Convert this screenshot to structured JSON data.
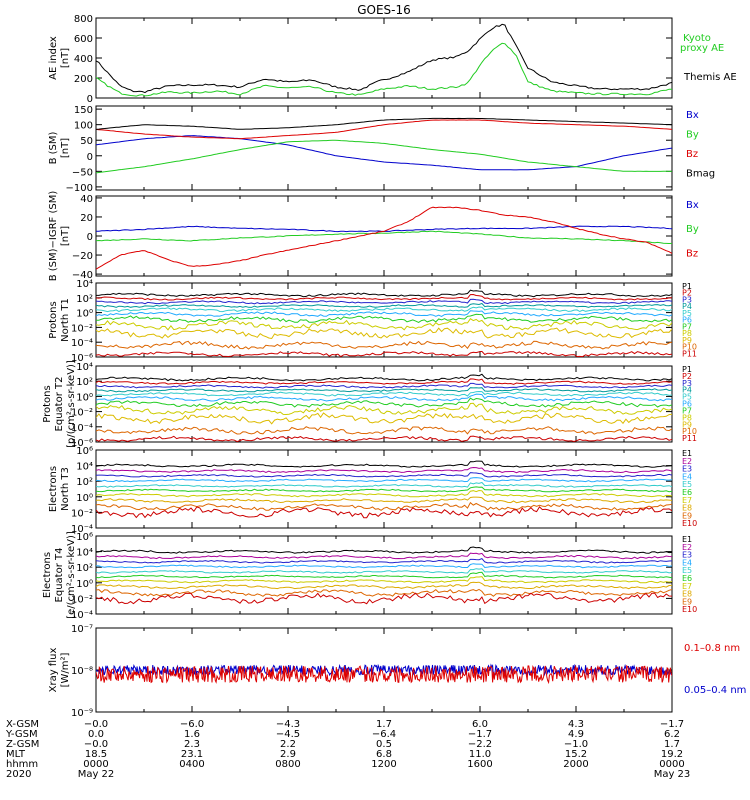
{
  "title": "GOES-16",
  "chart_data": [
    {
      "type": "line",
      "panel": "ae",
      "ylabel": [
        "AE index",
        "[nT]"
      ],
      "ylim": [
        0,
        800
      ],
      "ticks": [
        {
          "v": 0,
          "t": "0"
        },
        {
          "v": 200,
          "t": "200"
        },
        {
          "v": 400,
          "t": "400"
        },
        {
          "v": 600,
          "t": "600"
        },
        {
          "v": 800,
          "t": "800"
        }
      ],
      "legend": [
        {
          "text": "Kyoto",
          "color": "#22cc22"
        },
        {
          "text": "proxy AE",
          "color": "#22cc22"
        },
        {
          "text": "Themis AE",
          "color": "#000000"
        }
      ],
      "series": [
        {
          "name": "Themis AE",
          "color": "#000000",
          "x": [
            0,
            0.5,
            1,
            1.5,
            2,
            3,
            4,
            5,
            6,
            7,
            8,
            9,
            10,
            11,
            11.8,
            12,
            13,
            14,
            15,
            15.5,
            16,
            16.5,
            17,
            17.5,
            18,
            19,
            20,
            21,
            22,
            23,
            24
          ],
          "y": [
            380,
            250,
            120,
            70,
            60,
            120,
            130,
            130,
            110,
            190,
            160,
            180,
            110,
            80,
            170,
            180,
            260,
            380,
            410,
            470,
            590,
            700,
            740,
            520,
            300,
            160,
            120,
            90,
            90,
            90,
            150
          ]
        },
        {
          "name": "Kyoto proxy AE",
          "color": "#22cc22",
          "x": [
            0,
            0.5,
            1,
            1.5,
            2,
            3,
            4,
            5,
            6,
            7,
            8,
            9,
            10,
            11,
            11.8,
            12,
            13,
            14,
            15,
            15.5,
            16,
            16.5,
            17,
            17.5,
            18,
            19,
            20,
            21,
            22,
            23,
            24
          ],
          "y": [
            200,
            120,
            50,
            30,
            25,
            60,
            50,
            70,
            40,
            120,
            100,
            110,
            50,
            30,
            80,
            90,
            120,
            90,
            110,
            150,
            330,
            470,
            560,
            430,
            160,
            70,
            50,
            40,
            40,
            40,
            90
          ]
        }
      ]
    },
    {
      "type": "line",
      "panel": "b",
      "ylabel": [
        "B (SM)",
        "[nT]"
      ],
      "ylim": [
        -110,
        160
      ],
      "ticks": [
        {
          "v": -100,
          "t": "−100"
        },
        {
          "v": -50,
          "t": "−50"
        },
        {
          "v": 0,
          "t": "0"
        },
        {
          "v": 50,
          "t": "50"
        },
        {
          "v": 100,
          "t": "100"
        },
        {
          "v": 150,
          "t": "150"
        }
      ],
      "legend": [
        {
          "text": "Bx",
          "color": "#0000cc"
        },
        {
          "text": "By",
          "color": "#22cc22"
        },
        {
          "text": "Bz",
          "color": "#dd0000"
        },
        {
          "text": "Bmag",
          "color": "#000000"
        }
      ],
      "series": [
        {
          "name": "Bx",
          "color": "#0000cc",
          "x": [
            0,
            2,
            4,
            6,
            8,
            10,
            12,
            14,
            16,
            18,
            20,
            22,
            24
          ],
          "y": [
            35,
            55,
            65,
            55,
            35,
            0,
            -20,
            -30,
            -45,
            -45,
            -35,
            0,
            25
          ]
        },
        {
          "name": "By",
          "color": "#22cc22",
          "x": [
            0,
            2,
            4,
            6,
            8,
            10,
            12,
            14,
            16,
            18,
            20,
            22,
            24
          ],
          "y": [
            -55,
            -35,
            -10,
            20,
            45,
            50,
            40,
            20,
            5,
            -20,
            -35,
            -50,
            -50
          ]
        },
        {
          "name": "Bz",
          "color": "#dd0000",
          "x": [
            0,
            2,
            4,
            6,
            8,
            10,
            12,
            14,
            16,
            18,
            20,
            22,
            24
          ],
          "y": [
            85,
            70,
            60,
            55,
            65,
            75,
            100,
            115,
            115,
            105,
            100,
            95,
            85
          ]
        },
        {
          "name": "Bmag",
          "color": "#000000",
          "x": [
            0,
            2,
            4,
            6,
            8,
            10,
            12,
            14,
            16,
            18,
            20,
            22,
            24
          ],
          "y": [
            85,
            100,
            95,
            85,
            90,
            100,
            115,
            120,
            120,
            115,
            110,
            105,
            100
          ]
        }
      ]
    },
    {
      "type": "line",
      "panel": "db",
      "ylabel": [
        "B (SM)−IGRF (SM)",
        "[nT]"
      ],
      "ylim": [
        -42,
        42
      ],
      "ticks": [
        {
          "v": -40,
          "t": "−40"
        },
        {
          "v": -20,
          "t": "−20"
        },
        {
          "v": 0,
          "t": "0"
        },
        {
          "v": 20,
          "t": "20"
        },
        {
          "v": 40,
          "t": "40"
        }
      ],
      "legend": [
        {
          "text": "Bx",
          "color": "#0000cc"
        },
        {
          "text": "By",
          "color": "#22cc22"
        },
        {
          "text": "Bz",
          "color": "#dd0000"
        }
      ],
      "series": [
        {
          "name": "Bx",
          "color": "#0000cc",
          "x": [
            0,
            2,
            4,
            6,
            8,
            10,
            12,
            14,
            16,
            18,
            20,
            22,
            24
          ],
          "y": [
            5,
            7,
            10,
            8,
            7,
            5,
            5,
            7,
            8,
            8,
            10,
            10,
            8
          ]
        },
        {
          "name": "By",
          "color": "#22cc22",
          "x": [
            0,
            2,
            4,
            6,
            8,
            10,
            12,
            14,
            16,
            18,
            20,
            22,
            24
          ],
          "y": [
            -5,
            -3,
            -5,
            -2,
            0,
            2,
            3,
            5,
            2,
            -2,
            -3,
            -5,
            -8
          ]
        },
        {
          "name": "Bz",
          "color": "#dd0000",
          "x": [
            0,
            1,
            2,
            3,
            4,
            5,
            6,
            7,
            8,
            9,
            10,
            11,
            12,
            13,
            14,
            15,
            16,
            17,
            18,
            19,
            20,
            21,
            22,
            23,
            24
          ],
          "y": [
            -35,
            -20,
            -15,
            -25,
            -32,
            -30,
            -26,
            -20,
            -15,
            -10,
            -5,
            0,
            5,
            15,
            30,
            30,
            27,
            22,
            20,
            15,
            8,
            2,
            -3,
            -7,
            -18
          ]
        }
      ]
    },
    {
      "type": "line",
      "scale": "log",
      "panel": "pn",
      "ylabel": [
        "Protons",
        "North T1"
      ],
      "ylim": [
        -6,
        4
      ],
      "ticks": [
        {
          "v": -6,
          "t": "10⁻⁶"
        },
        {
          "v": -4,
          "t": "10⁻⁴"
        },
        {
          "v": -2,
          "t": "10⁻²"
        },
        {
          "v": 0,
          "t": "10⁰"
        },
        {
          "v": 2,
          "t": "10²"
        },
        {
          "v": 4,
          "t": "10⁴"
        }
      ],
      "channels": [
        "P1",
        "P2",
        "P3",
        "P4",
        "P5",
        "P6",
        "P7",
        "P8",
        "P9",
        "P10",
        "P11"
      ],
      "levels": [
        2.4,
        1.9,
        1.4,
        0.9,
        0.4,
        -0.2,
        -0.9,
        -1.7,
        -2.8,
        -4.4,
        -5.6
      ],
      "amps": [
        0.15,
        0.12,
        0.12,
        0.12,
        0.15,
        0.18,
        0.25,
        0.35,
        0.4,
        0.3,
        0.2
      ]
    },
    {
      "type": "line",
      "scale": "log",
      "panel": "pe",
      "ylabel": [
        "Protons",
        "Equator T2",
        "[p/(cm²-s-sr-keV)]"
      ],
      "ylim": [
        -6,
        4
      ],
      "ticks": [
        {
          "v": -6,
          "t": "10⁻⁶"
        },
        {
          "v": -4,
          "t": "10⁻⁴"
        },
        {
          "v": -2,
          "t": "10⁻²"
        },
        {
          "v": 0,
          "t": "10⁰"
        },
        {
          "v": 2,
          "t": "10²"
        },
        {
          "v": 4,
          "t": "10⁴"
        }
      ],
      "channels": [
        "P1",
        "P2",
        "P3",
        "P4",
        "P5",
        "P6",
        "P7",
        "P8",
        "P9",
        "P10",
        "P11"
      ],
      "levels": [
        2.3,
        1.8,
        1.3,
        0.8,
        0.3,
        -0.3,
        -1.0,
        -1.8,
        -2.9,
        -4.5,
        -5.6
      ],
      "amps": [
        0.15,
        0.12,
        0.12,
        0.12,
        0.15,
        0.18,
        0.25,
        0.35,
        0.4,
        0.3,
        0.2
      ]
    },
    {
      "type": "line",
      "scale": "log",
      "panel": "en",
      "ylabel": [
        "Electrons",
        "North T3"
      ],
      "ylim": [
        -4,
        6
      ],
      "ticks": [
        {
          "v": -4,
          "t": "10⁻⁴"
        },
        {
          "v": -2,
          "t": "10⁻²"
        },
        {
          "v": 0,
          "t": "10⁰"
        },
        {
          "v": 2,
          "t": "10²"
        },
        {
          "v": 4,
          "t": "10⁴"
        },
        {
          "v": 6,
          "t": "10⁶"
        }
      ],
      "channels": [
        "E1",
        "E2",
        "E3",
        "E4",
        "E5",
        "E6",
        "E7",
        "E8",
        "E9",
        "E10"
      ],
      "levels": [
        4.0,
        3.3,
        2.7,
        2.1,
        1.4,
        0.8,
        0.2,
        -0.5,
        -1.3,
        -2.0
      ],
      "amps": [
        0.12,
        0.12,
        0.1,
        0.1,
        0.1,
        0.1,
        0.12,
        0.15,
        0.25,
        0.4
      ]
    },
    {
      "type": "line",
      "scale": "log",
      "panel": "ee",
      "ylabel": [
        "Electrons",
        "Equator T4",
        "[e/(cm²-s-sr-keV)]"
      ],
      "ylim": [
        -4,
        6
      ],
      "ticks": [
        {
          "v": -4,
          "t": "10⁻⁴"
        },
        {
          "v": -2,
          "t": "10⁻²"
        },
        {
          "v": 0,
          "t": "10⁰"
        },
        {
          "v": 2,
          "t": "10²"
        },
        {
          "v": 4,
          "t": "10⁴"
        },
        {
          "v": 6,
          "t": "10⁶"
        }
      ],
      "channels": [
        "E1",
        "E2",
        "E3",
        "E4",
        "E5",
        "E6",
        "E7",
        "E8",
        "E9",
        "E10"
      ],
      "levels": [
        4.0,
        3.3,
        2.7,
        2.1,
        1.4,
        0.8,
        0.2,
        -0.5,
        -1.3,
        -2.0
      ],
      "amps": [
        0.12,
        0.12,
        0.1,
        0.1,
        0.1,
        0.1,
        0.12,
        0.15,
        0.25,
        0.4
      ]
    },
    {
      "type": "line",
      "scale": "log",
      "panel": "xray",
      "ylabel": [
        "Xray flux",
        "[W/m²]"
      ],
      "ylim": [
        -9,
        -7
      ],
      "ticks": [
        {
          "v": -9,
          "t": "10⁻⁹"
        },
        {
          "v": -8,
          "t": "10⁻⁸"
        },
        {
          "v": -7,
          "t": "10⁻⁷"
        }
      ],
      "legend": [
        {
          "text": "0.1–0.8 nm",
          "color": "#dd0000"
        },
        {
          "text": "0.05–0.4 nm",
          "color": "#0000cc"
        }
      ],
      "series": [
        {
          "name": "0.05–0.4 nm",
          "color": "#0000cc",
          "level": -8.0,
          "amp": 0.12
        },
        {
          "name": "0.1–0.8 nm",
          "color": "#dd0000",
          "level": -8.1,
          "amp": 0.2
        }
      ]
    }
  ],
  "channel_colors": {
    "P": [
      "#000000",
      "#cc0000",
      "#2222cc",
      "#009999",
      "#33cccc",
      "#22aaff",
      "#22cc22",
      "#cccc00",
      "#ddbb00",
      "#dd6600",
      "#cc0000"
    ],
    "E": [
      "#000000",
      "#aa0099",
      "#2222cc",
      "#22aaff",
      "#33cccc",
      "#22cc22",
      "#cccc00",
      "#ddaa00",
      "#dd6600",
      "#cc0000"
    ]
  },
  "xaxis": {
    "rows": [
      {
        "label": "X-GSM",
        "values": [
          "−0.0",
          "−6.0",
          "−4.3",
          "1.7",
          "6.0",
          "4.3",
          "−1.7"
        ]
      },
      {
        "label": "Y-GSM",
        "values": [
          "0.0",
          "1.6",
          "−4.5",
          "−6.4",
          "−1.7",
          "4.9",
          "6.2"
        ]
      },
      {
        "label": "Z-GSM",
        "values": [
          "−0.0",
          "2.3",
          "2.2",
          "0.5",
          "−2.2",
          "−1.0",
          "1.7"
        ]
      },
      {
        "label": "MLT",
        "values": [
          "18.5",
          "23.1",
          "2.9",
          "6.8",
          "11.0",
          "15.2",
          "19.2"
        ]
      },
      {
        "label": "hhmm",
        "values": [
          "0000",
          "0400",
          "0800",
          "1200",
          "1600",
          "2000",
          "0000"
        ]
      }
    ],
    "year": "2020",
    "date_start": "May 22",
    "date_end": "May 23",
    "hours": [
      0,
      4,
      8,
      12,
      16,
      20,
      24
    ]
  }
}
